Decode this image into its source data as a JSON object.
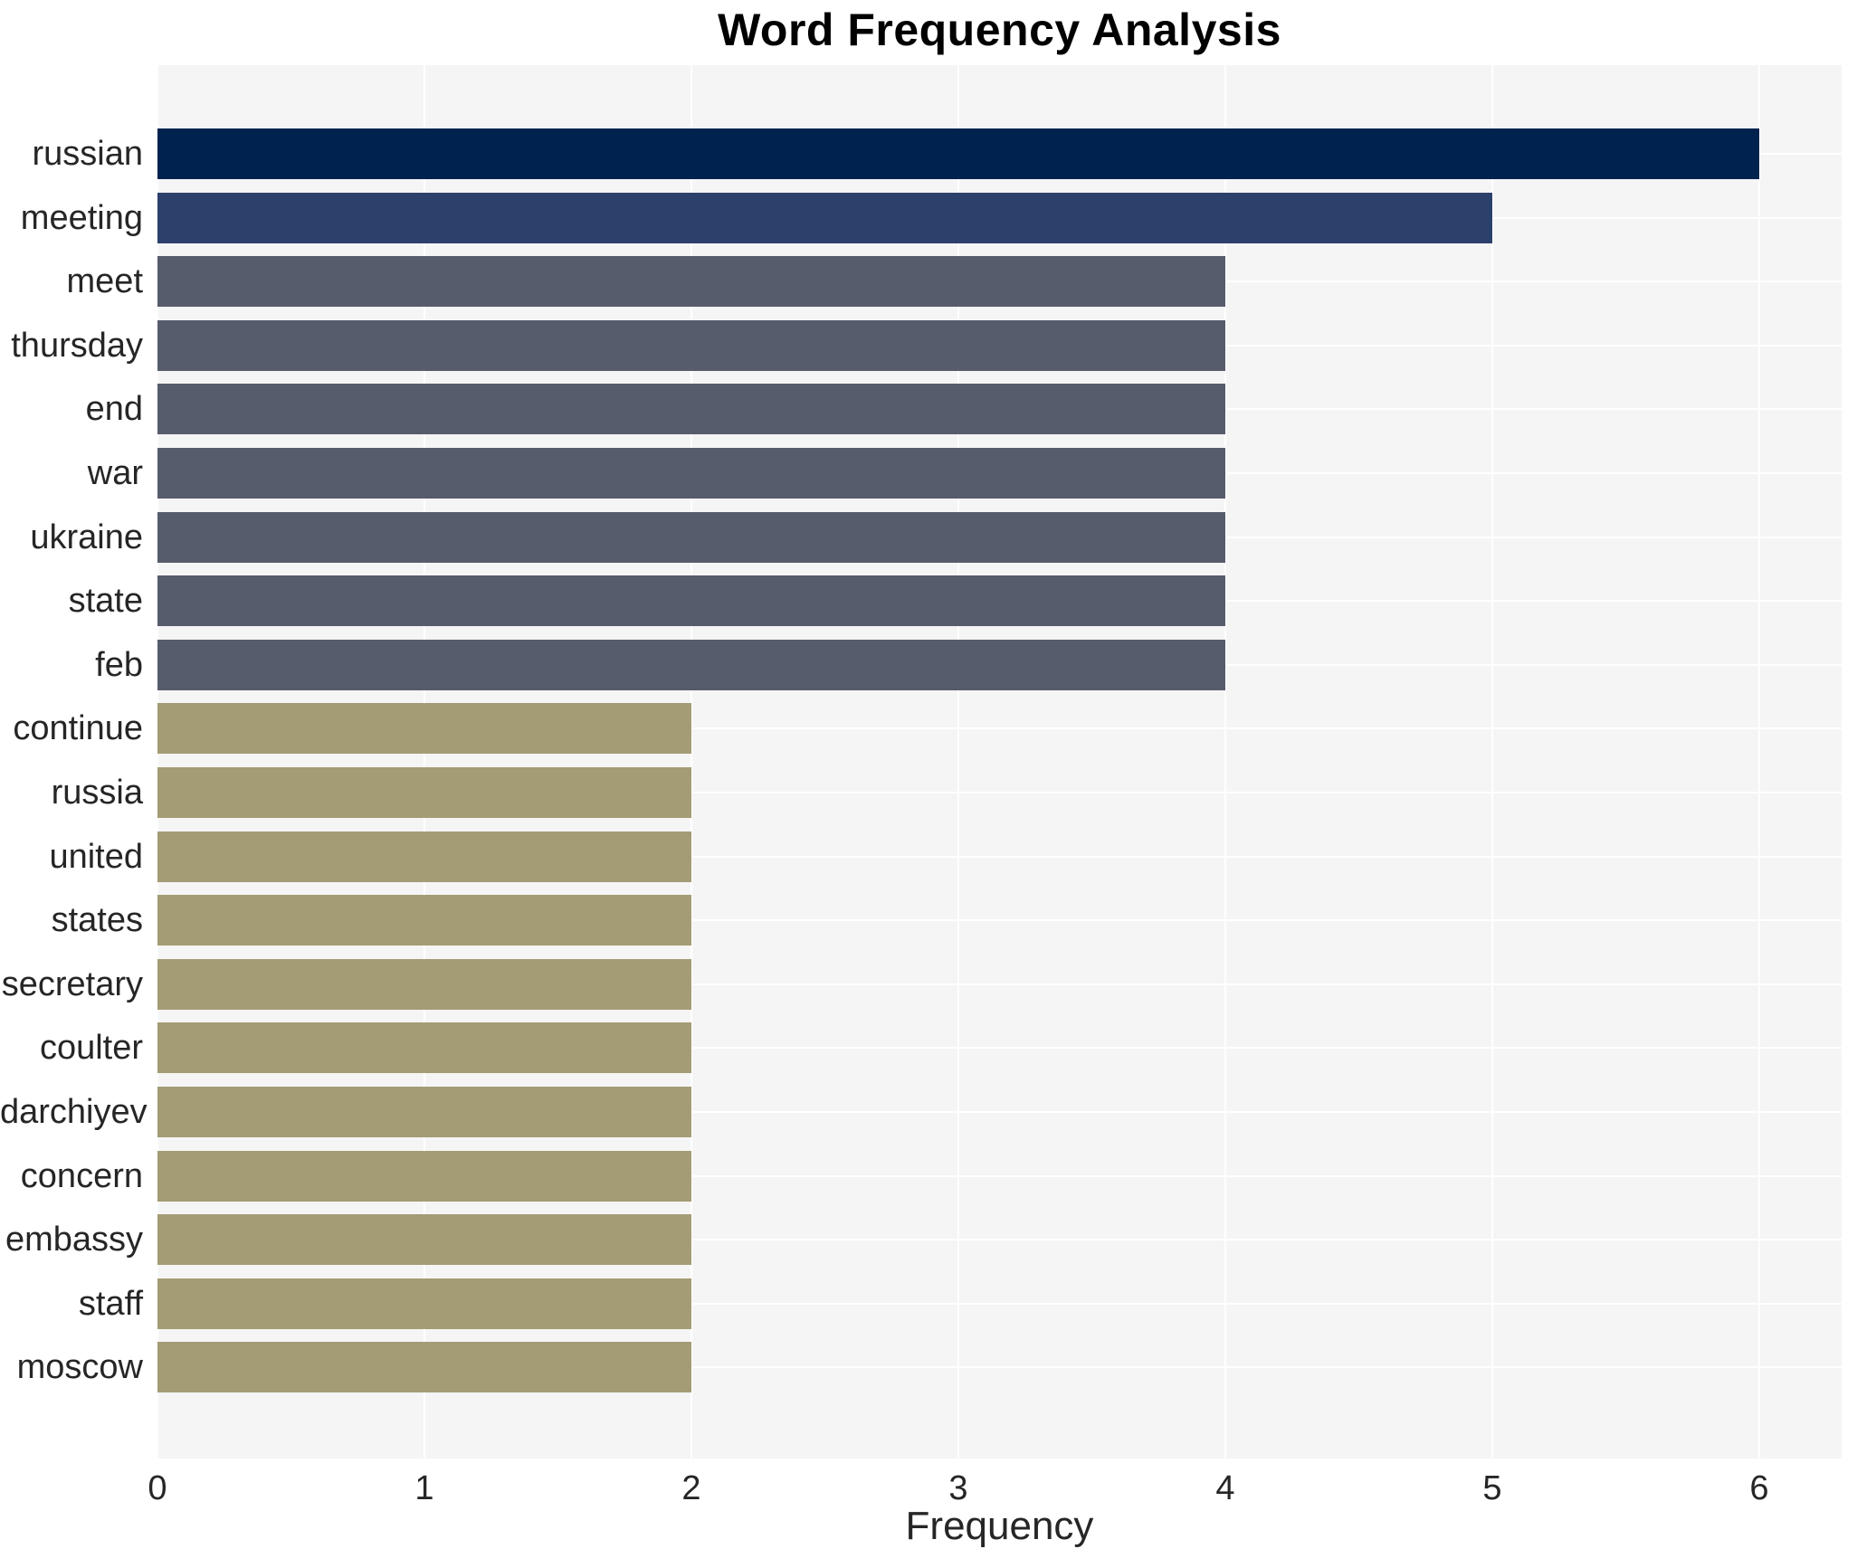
{
  "chart_data": {
    "type": "bar",
    "orientation": "horizontal",
    "title": "Word Frequency Analysis",
    "xlabel": "Frequency",
    "ylabel": "",
    "categories": [
      "russian",
      "meeting",
      "meet",
      "thursday",
      "end",
      "war",
      "ukraine",
      "state",
      "feb",
      "continue",
      "russia",
      "united",
      "states",
      "secretary",
      "coulter",
      "darchiyev",
      "concern",
      "embassy",
      "staff",
      "moscow"
    ],
    "values": [
      6,
      5,
      4,
      4,
      4,
      4,
      4,
      4,
      4,
      2,
      2,
      2,
      2,
      2,
      2,
      2,
      2,
      2,
      2,
      2
    ],
    "bar_colors": [
      "#00224e",
      "#2c406c",
      "#565c6c",
      "#565c6c",
      "#565c6c",
      "#565c6c",
      "#565c6c",
      "#565c6c",
      "#565c6c",
      "#a49c74",
      "#a49c74",
      "#a49c74",
      "#a49c74",
      "#a49c74",
      "#a49c74",
      "#a49c74",
      "#a49c74",
      "#a49c74",
      "#a49c74",
      "#a49c74"
    ],
    "xticks": [
      "0",
      "1",
      "2",
      "3",
      "4",
      "5",
      "6"
    ],
    "xlim": [
      0,
      6.31
    ],
    "grid": true,
    "legend_position": "none",
    "plot_background": "#f5f5f6",
    "grid_color": "#ffffff",
    "tick_text_color": "#262626",
    "title_color": "#000000"
  }
}
